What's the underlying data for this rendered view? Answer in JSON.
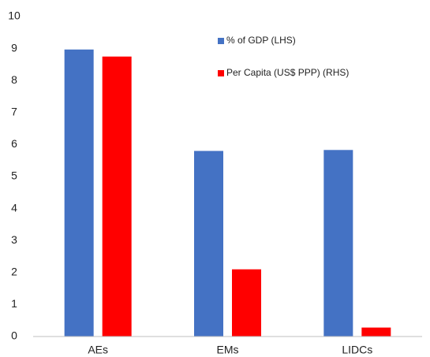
{
  "chart_data": {
    "type": "bar",
    "categories": [
      "AEs",
      "EMs",
      "LIDCs"
    ],
    "series": [
      {
        "name": "% of GDP (LHS)",
        "color": "#4472c4",
        "values": [
          8.97,
          5.8,
          5.83
        ]
      },
      {
        "name": "Per Capita (US$ PPP) (RHS)",
        "color": "#ff0000",
        "values": [
          8.75,
          2.1,
          0.28
        ]
      }
    ],
    "ylim": [
      0,
      10
    ],
    "yticks": [
      0,
      1,
      2,
      3,
      4,
      5,
      6,
      7,
      8,
      9,
      10
    ],
    "grid": false
  }
}
